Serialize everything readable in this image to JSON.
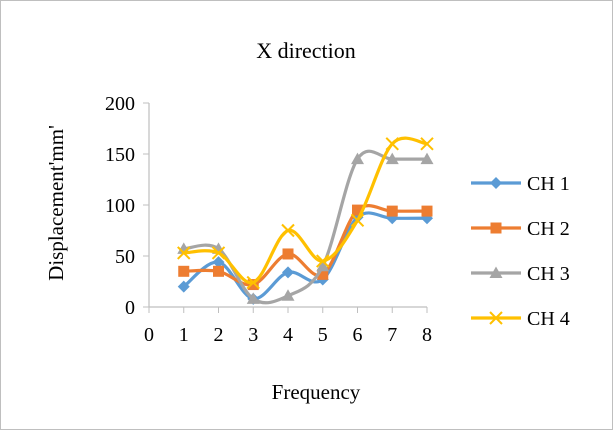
{
  "chart_data": {
    "type": "line",
    "title": "X direction",
    "xlabel": "Frequency",
    "ylabel": "Displacement'mm'",
    "xlim": [
      0,
      8
    ],
    "ylim": [
      0,
      200
    ],
    "x_ticks": [
      0,
      1,
      2,
      3,
      4,
      5,
      6,
      7,
      8
    ],
    "y_ticks": [
      0,
      50,
      100,
      150,
      200
    ],
    "grid": false,
    "smooth": true,
    "legend_position": "right",
    "x": [
      1,
      2,
      3,
      4,
      5,
      6,
      7,
      8
    ],
    "series": [
      {
        "name": "CH 1",
        "color": "#5B9BD5",
        "marker": "diamond",
        "values": [
          20,
          44,
          8,
          34,
          27,
          88,
          87,
          87
        ]
      },
      {
        "name": "CH 2",
        "color": "#ED7D31",
        "marker": "square",
        "values": [
          35,
          35,
          22,
          52,
          32,
          95,
          94,
          94
        ]
      },
      {
        "name": "CH 3",
        "color": "#A5A5A5",
        "marker": "triangle",
        "values": [
          57,
          57,
          8,
          11,
          40,
          145,
          145,
          145
        ]
      },
      {
        "name": "CH 4",
        "color": "#FFC000",
        "marker": "x",
        "values": [
          53,
          53,
          24,
          75,
          45,
          85,
          160,
          160
        ]
      }
    ]
  }
}
